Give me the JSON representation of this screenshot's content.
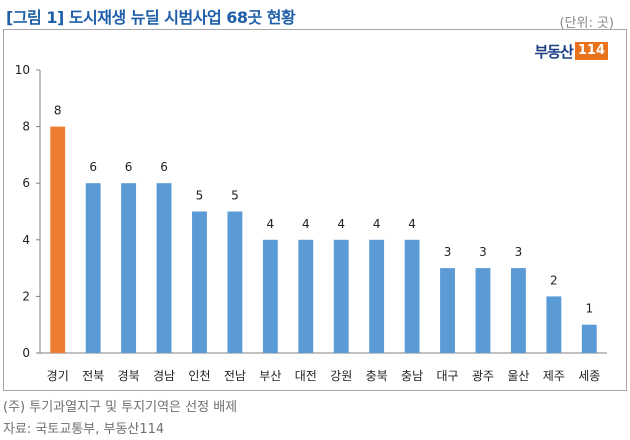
{
  "figure_title": "[그림 1] 도시재생 뉴딜 시범사업 68곳 현황",
  "unit_label": "(단위: 곳)",
  "logo": {
    "text": "부동산",
    "badge": "114"
  },
  "note": "(주) 투기과열지구 및 투지기역은 선정 배제",
  "source": "자료: 국토교통부, 부동산114",
  "colors": {
    "highlight": "#ed7d31",
    "default": "#5b9bd5",
    "title": "#1f5fa8"
  },
  "chart_data": {
    "type": "bar",
    "categories": [
      "경기",
      "전북",
      "경북",
      "경남",
      "인천",
      "전남",
      "부산",
      "대전",
      "강원",
      "충북",
      "충남",
      "대구",
      "광주",
      "울산",
      "제주",
      "세종"
    ],
    "values": [
      8,
      6,
      6,
      6,
      5,
      5,
      4,
      4,
      4,
      4,
      4,
      3,
      3,
      3,
      2,
      1
    ],
    "highlight_index": 0,
    "ylim": [
      0,
      10
    ],
    "yticks": [
      0,
      2,
      4,
      6,
      8,
      10
    ],
    "grid": false,
    "data_labels": true,
    "legend": "none"
  }
}
